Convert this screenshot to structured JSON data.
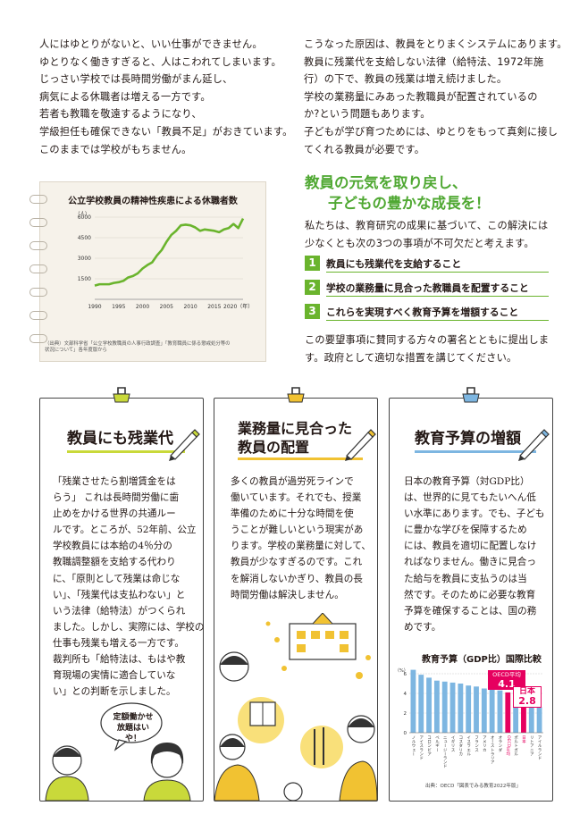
{
  "intro": {
    "lines": [
      "人にはゆとりがないと、いい仕事ができません。",
      "ゆとりなく働きすぎると、人はこわれてしまいます。",
      "じっさい学校では長時間労働がまん延し、",
      "病気による休職者は増える一方です。",
      "若者も教職を敬遠するようになり、",
      "学級担任も確保できない「教員不足」がおきています。",
      "このままでは学校がもちません。"
    ]
  },
  "cause": {
    "lines": [
      "こうなった原因は、教員をとりまくシステムにあります。",
      "教員に残業代を支給しない法律（給特法、1972年施",
      "行）の下で、教員の残業は増え続けました。",
      "学校の業務量にみあった教職員が配置されているの",
      "か?という問題もあります。",
      "子どもが学び育つためには、ゆとりをもって真剣に接し",
      "てくれる教員が必要です。"
    ]
  },
  "headline": {
    "line1": "教員の元気を取り戻し、",
    "line2": "子どもの豊かな成長を！"
  },
  "solution": {
    "lines": [
      "私たちは、教育研究の成果に基づいて、この解決には",
      "少なくとも次の3つの事項が不可欠だと考えます。"
    ]
  },
  "requests": [
    {
      "num": "1",
      "text": "教員にも残業代を支給すること"
    },
    {
      "num": "2",
      "text": "学校の業務量に見合った教職員を配置すること"
    },
    {
      "num": "3",
      "text": "これらを実現すべく教育予算を増額すること"
    }
  ],
  "closing": {
    "lines": [
      "この要望事項に賛同する方々の署名とともに提出しま",
      "す。政府として適切な措置を講じてください。"
    ]
  },
  "sick_chart": {
    "unit": "（人）",
    "source_lines": [
      "（出典）文部科学省「公立学校教職員の人事行政調査」「教育職員に係る懲戒処分等の",
      "状況について」各年度版から"
    ]
  },
  "cards": [
    {
      "title_lines": [
        "教員にも残業代"
      ],
      "body": [
        "「残業させたら割増賃金をは",
        "らう」 これは長時間労働に歯",
        "止めをかける世界の共通ルー",
        "ルです。ところが、52年前、公立",
        "学校教員には本給の4％分の",
        "教職調整額を支給する代わり",
        "に、「原則として残業は命じな",
        "い」、「残業代は支払わない」と",
        "いう法律（給特法）がつくられ",
        "ました。しかし、実際には、学校の",
        "仕事も残業も増える一方です。",
        "裁判所も「給特法は、もはや教",
        "育現場の実情に適合していな",
        "い」との判断を示しました。"
      ],
      "bubble_lines": [
        "定額働かせ",
        "放題はいや！"
      ]
    },
    {
      "title_lines": [
        "業務量に見合った",
        "教員の配置"
      ],
      "body": [
        "多くの教員が過労死ラインで",
        "働いています。それでも、授業",
        "準備のために十分な時間を使",
        "うことが難しいという現実があ",
        "ります。学校の業務量に対して、",
        "教員が少なすぎるのです。これ",
        "を解消しないかぎり、教員の長",
        "時間労働は解決しません。"
      ]
    },
    {
      "title_lines": [
        "教育予算の増額"
      ],
      "body": [
        "日本の教育予算（対GDP比）",
        "は、世界的に見てもたいへん低",
        "い水準にあります。でも、子ども",
        "に豊かな学びを保障するため",
        "には、教員を適切に配置しなけ",
        "ればなりません。働きに見合っ",
        "た給与を教員に支払うのは当",
        "然です。そのために必要な教育",
        "予算を確保することは、国の務",
        "めです。"
      ],
      "chart_title": "教育予算（GDP比）国際比較",
      "oecd_label": "OECD平均",
      "oecd_value": "4.1",
      "japan_label": "日本",
      "japan_value": "2.8",
      "source": "出典：OECD「図表でみる教育2022年版」"
    }
  ],
  "chart_data": [
    {
      "type": "line",
      "title": "公立学校教員の精神性疾患による休職者数",
      "ylabel": "（人）",
      "ylim": [
        0,
        6000
      ],
      "yticks": [
        1500,
        3000,
        4500,
        6000
      ],
      "xticks": [
        1990,
        1995,
        2000,
        2005,
        2010,
        2015,
        2020
      ],
      "xtick_labels": [
        "1990",
        "1995",
        "2000",
        "2005",
        "2010",
        "2015",
        "2020（年）"
      ],
      "x": [
        1990,
        1991,
        1992,
        1993,
        1994,
        1995,
        1996,
        1997,
        1998,
        1999,
        2000,
        2001,
        2002,
        2003,
        2004,
        2005,
        2006,
        2007,
        2008,
        2009,
        2010,
        2011,
        2012,
        2013,
        2014,
        2015,
        2016,
        2017,
        2018,
        2019,
        2020,
        2021
      ],
      "values": [
        1000,
        1100,
        1100,
        1100,
        1200,
        1250,
        1350,
        1600,
        1700,
        1900,
        2250,
        2500,
        2700,
        3200,
        3600,
        4200,
        4700,
        5000,
        5400,
        5450,
        5400,
        5250,
        5000,
        5100,
        5050,
        5000,
        4900,
        5100,
        5200,
        5500,
        5200,
        5900
      ],
      "series_color": "#6ab42d"
    },
    {
      "type": "bar",
      "title": "教育予算（GDP比）国際比較",
      "ylabel": "（%）",
      "ylim": [
        0,
        6
      ],
      "yticks": [
        0,
        2,
        4,
        6
      ],
      "categories": [
        "ノルウェー",
        "アイスランド",
        "コロンビア",
        "ベルギー",
        "ニュージーランド",
        "イギリス",
        "コスタリカ",
        "イスラエル",
        "フランス",
        "アメリカ",
        "オーストラリア",
        "オランダ",
        "OECD平均",
        "ポルトガル",
        "日本",
        "リトアニア",
        "アイルランド"
      ],
      "values": [
        6.4,
        5.9,
        5.6,
        5.3,
        5.2,
        5.1,
        5.0,
        4.8,
        4.7,
        4.5,
        4.4,
        4.3,
        4.1,
        4.0,
        2.8,
        2.8,
        2.6
      ],
      "highlight": {
        "OECD平均": "#e6005f",
        "日本": "#e6005f"
      },
      "bar_color": "#7db6e1"
    }
  ]
}
